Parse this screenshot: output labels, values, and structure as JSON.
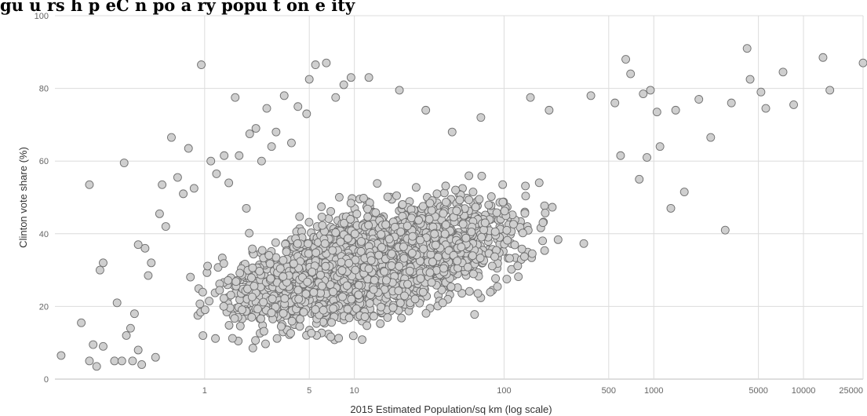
{
  "caption_text": "gu u rs h  p  eC n  po a ry popu  t  on e  ity",
  "chart_data": {
    "type": "scatter",
    "xlabel": "2015 Estimated Population/sq km (log scale)",
    "ylabel": "Clinton vote share (%)",
    "x_scale": "log",
    "xlim": [
      0.1,
      25000
    ],
    "ylim": [
      0,
      100
    ],
    "x_ticks": [
      1,
      5,
      10,
      100,
      500,
      1000,
      5000,
      10000,
      25000
    ],
    "x_tick_labels": [
      "1",
      "5",
      "10",
      "100",
      "500",
      "1000",
      "5000",
      "10000",
      "25000"
    ],
    "y_ticks": [
      0,
      20,
      40,
      60,
      80,
      100
    ],
    "y_tick_labels": [
      "0",
      "20",
      "40",
      "60",
      "80",
      "100"
    ],
    "grid": true,
    "marker_fill": "#cfcfcf",
    "marker_edge": "#6f6f6f",
    "points": [
      [
        0.11,
        6.5
      ],
      [
        0.15,
        15.5
      ],
      [
        0.17,
        5
      ],
      [
        0.18,
        9.5
      ],
      [
        0.17,
        53.5
      ],
      [
        0.19,
        3.5
      ],
      [
        0.2,
        30
      ],
      [
        0.21,
        32
      ],
      [
        0.21,
        9
      ],
      [
        0.25,
        5
      ],
      [
        0.28,
        5
      ],
      [
        0.26,
        21
      ],
      [
        0.29,
        59.5
      ],
      [
        0.33,
        5
      ],
      [
        0.36,
        8
      ],
      [
        0.38,
        4
      ],
      [
        0.3,
        12
      ],
      [
        0.32,
        14
      ],
      [
        0.34,
        18
      ],
      [
        0.36,
        37
      ],
      [
        0.4,
        36
      ],
      [
        0.42,
        28.5
      ],
      [
        0.44,
        32
      ],
      [
        0.47,
        6
      ],
      [
        0.5,
        45.5
      ],
      [
        0.52,
        53.5
      ],
      [
        0.55,
        42
      ],
      [
        0.6,
        66.5
      ],
      [
        0.66,
        55.5
      ],
      [
        0.72,
        51
      ],
      [
        0.78,
        63.5
      ],
      [
        0.85,
        52.5
      ],
      [
        0.95,
        86.5
      ],
      [
        1.1,
        60
      ],
      [
        1.2,
        56.5
      ],
      [
        1.35,
        61.5
      ],
      [
        1.45,
        54
      ],
      [
        1.6,
        77.5
      ],
      [
        1.7,
        61.5
      ],
      [
        1.9,
        47
      ],
      [
        2,
        67.5
      ],
      [
        2.2,
        69
      ],
      [
        2.4,
        60
      ],
      [
        2.6,
        74.5
      ],
      [
        2.8,
        64
      ],
      [
        3,
        68
      ],
      [
        3.4,
        78
      ],
      [
        3.8,
        65
      ],
      [
        4.2,
        75
      ],
      [
        4.8,
        73
      ],
      [
        5,
        82.5
      ],
      [
        5.5,
        86.5
      ],
      [
        6.5,
        87
      ],
      [
        7.5,
        77.5
      ],
      [
        8.5,
        81
      ],
      [
        9.5,
        83
      ],
      [
        12.5,
        83
      ],
      [
        20,
        79.5
      ],
      [
        30,
        74
      ],
      [
        45,
        68
      ],
      [
        70,
        72
      ],
      [
        150,
        77.5
      ],
      [
        200,
        74
      ],
      [
        380,
        78
      ],
      [
        550,
        76
      ],
      [
        650,
        88
      ],
      [
        700,
        84
      ],
      [
        850,
        78.5
      ],
      [
        950,
        79.5
      ],
      [
        1050,
        73.5
      ],
      [
        1400,
        74
      ],
      [
        2000,
        77
      ],
      [
        2400,
        66.5
      ],
      [
        3000,
        41
      ],
      [
        3300,
        76
      ],
      [
        4200,
        91
      ],
      [
        4400,
        82.5
      ],
      [
        5200,
        79
      ],
      [
        5600,
        74.5
      ],
      [
        7300,
        84.5
      ],
      [
        8600,
        75.5
      ],
      [
        13500,
        88.5
      ],
      [
        15000,
        79.5
      ],
      [
        25000,
        87
      ],
      [
        1300,
        47
      ],
      [
        1600,
        51.5
      ],
      [
        1100,
        64
      ],
      [
        900,
        61
      ],
      [
        600,
        61.5
      ],
      [
        800,
        55
      ]
    ]
  }
}
